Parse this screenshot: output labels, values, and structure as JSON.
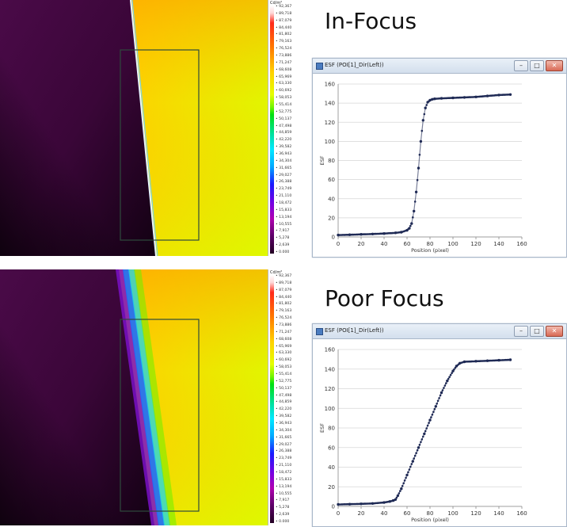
{
  "colorbar": {
    "unit": "Cd/m²",
    "labels": [
      "92,367",
      "89,718",
      "87,079",
      "84,440",
      "81,802",
      "79,163",
      "76,524",
      "73,886",
      "71,247",
      "68,608",
      "65,969",
      "63,330",
      "60,692",
      "58,053",
      "55,414",
      "52,775",
      "50,137",
      "47,498",
      "44,859",
      "42,220",
      "39,582",
      "36,943",
      "34,304",
      "31,665",
      "29,027",
      "26,388",
      "23,749",
      "21,110",
      "18,472",
      "15,833",
      "13,194",
      "10,555",
      "7,917",
      "5,278",
      "2,639",
      "0.000"
    ]
  },
  "panels": [
    {
      "heading": "In-Focus",
      "window": {
        "title": "ESF (POI[1]_Dir(Left))",
        "buttons": {
          "minimize": "–",
          "maximize": "□",
          "close": "✕"
        }
      },
      "chart_data": {
        "type": "scatter",
        "title": "",
        "xlabel": "Position (pixel)",
        "ylabel": "ESF",
        "xlim": [
          0,
          160
        ],
        "ylim": [
          0,
          160
        ],
        "xticks": [
          0,
          20,
          40,
          60,
          80,
          100,
          120,
          140,
          160
        ],
        "yticks": [
          0,
          20,
          40,
          60,
          80,
          100,
          120,
          140,
          160
        ],
        "grid": true,
        "color": "#1f2a55",
        "points": [
          [
            0,
            2
          ],
          [
            10,
            2.3
          ],
          [
            20,
            2.7
          ],
          [
            30,
            3.1
          ],
          [
            40,
            3.6
          ],
          [
            50,
            4.3
          ],
          [
            55,
            5
          ],
          [
            60,
            7
          ],
          [
            62,
            9
          ],
          [
            64,
            14
          ],
          [
            66,
            27
          ],
          [
            68,
            47
          ],
          [
            70,
            72
          ],
          [
            72,
            100
          ],
          [
            74,
            122
          ],
          [
            76,
            135
          ],
          [
            78,
            141
          ],
          [
            80,
            143
          ],
          [
            82,
            144
          ],
          [
            84,
            144.5
          ],
          [
            90,
            145
          ],
          [
            100,
            145.5
          ],
          [
            110,
            146
          ],
          [
            120,
            146.5
          ],
          [
            130,
            147.5
          ],
          [
            140,
            148.5
          ],
          [
            150,
            149
          ]
        ]
      }
    },
    {
      "heading": "Poor Focus",
      "window": {
        "title": "ESF (POI[1]_Dir(Left))",
        "buttons": {
          "minimize": "–",
          "maximize": "□",
          "close": "✕"
        }
      },
      "chart_data": {
        "type": "scatter",
        "title": "",
        "xlabel": "Position (pixel)",
        "ylabel": "ESF",
        "xlim": [
          0,
          160
        ],
        "ylim": [
          0,
          160
        ],
        "xticks": [
          0,
          20,
          40,
          60,
          80,
          100,
          120,
          140,
          160
        ],
        "yticks": [
          0,
          20,
          40,
          60,
          80,
          100,
          120,
          140,
          160
        ],
        "grid": true,
        "color": "#1f2a55",
        "points": [
          [
            0,
            2
          ],
          [
            10,
            2.3
          ],
          [
            20,
            2.6
          ],
          [
            30,
            3
          ],
          [
            40,
            4
          ],
          [
            45,
            5
          ],
          [
            48,
            6
          ],
          [
            50,
            7
          ],
          [
            52,
            11
          ],
          [
            55,
            18
          ],
          [
            60,
            32
          ],
          [
            65,
            46
          ],
          [
            70,
            60
          ],
          [
            75,
            74
          ],
          [
            80,
            88
          ],
          [
            85,
            102
          ],
          [
            90,
            116
          ],
          [
            95,
            128
          ],
          [
            100,
            138
          ],
          [
            103,
            143
          ],
          [
            106,
            146
          ],
          [
            110,
            147.5
          ],
          [
            120,
            148
          ],
          [
            130,
            148.5
          ],
          [
            140,
            149
          ],
          [
            150,
            149.5
          ]
        ]
      }
    }
  ]
}
